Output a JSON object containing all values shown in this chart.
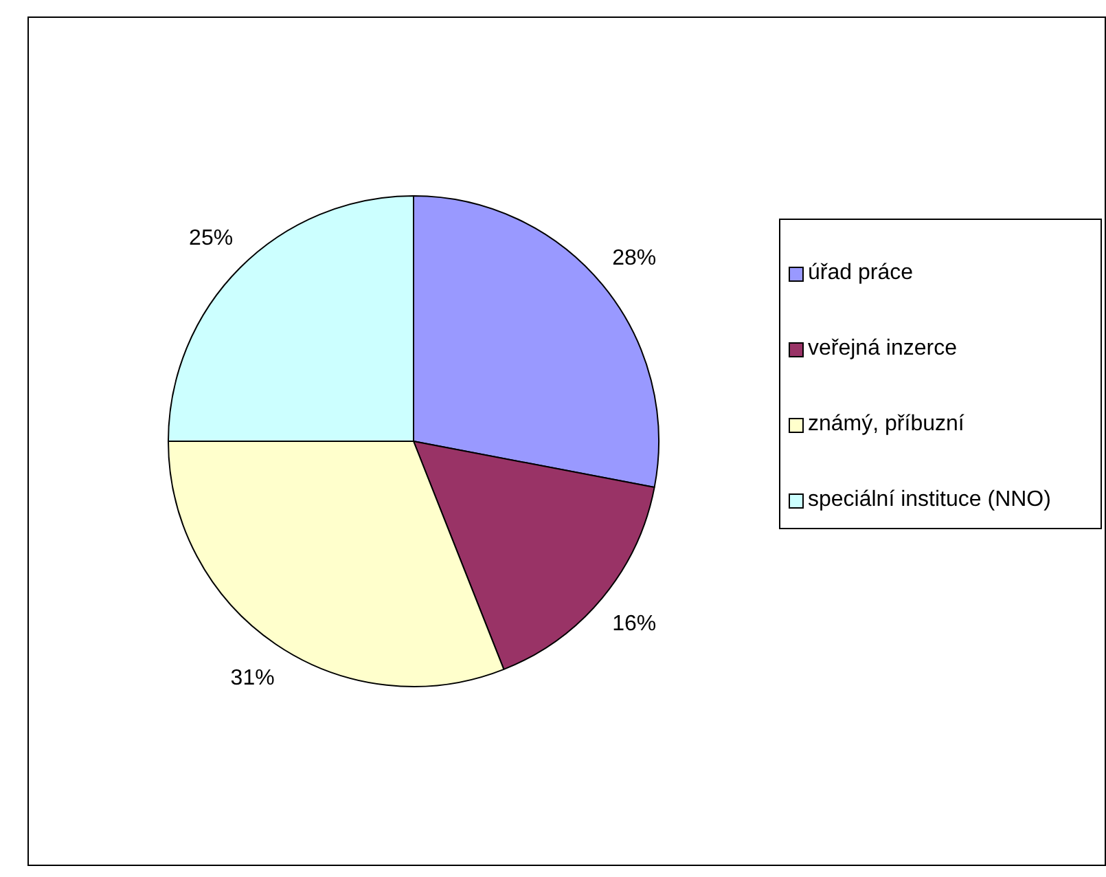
{
  "chart_data": {
    "type": "pie",
    "categories": [
      "úřad práce",
      "veřejná inzerce",
      "známý, příbuzní",
      "speciální instituce (NNO)"
    ],
    "values": [
      28,
      16,
      31,
      25
    ],
    "colors": [
      "#9999ff",
      "#993366",
      "#ffffcc",
      "#ccffff"
    ],
    "value_labels": [
      "28%",
      "16%",
      "31%",
      "25%"
    ],
    "legend": "right"
  }
}
